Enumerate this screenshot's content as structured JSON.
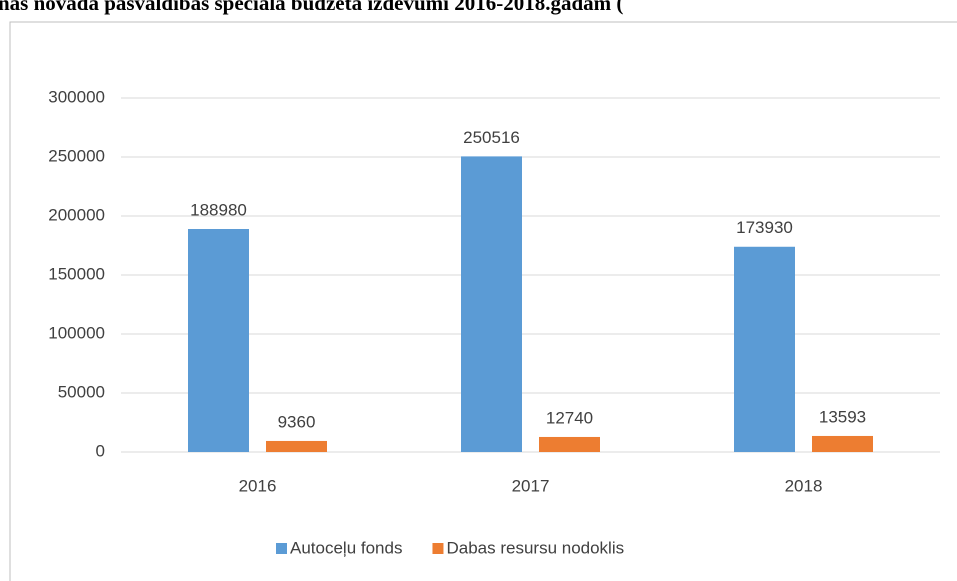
{
  "chart_data": {
    "type": "bar",
    "title": "nas novada pašvaldības speciālā budžeta izdevumi 2016-2018.gadam (",
    "categories": [
      "2016",
      "2017",
      "2018"
    ],
    "series": [
      {
        "name": "Autoceļu fonds",
        "color": "#5b9bd5",
        "values": [
          188980,
          250516,
          173930
        ]
      },
      {
        "name": "Dabas resursu nodoklis",
        "color": "#ed7d31",
        "values": [
          9360,
          12740,
          13593
        ]
      }
    ],
    "ylim": [
      0,
      300000
    ],
    "yticks": [
      0,
      50000,
      100000,
      150000,
      200000,
      250000,
      300000
    ],
    "grid": true,
    "legend": "bottom"
  }
}
